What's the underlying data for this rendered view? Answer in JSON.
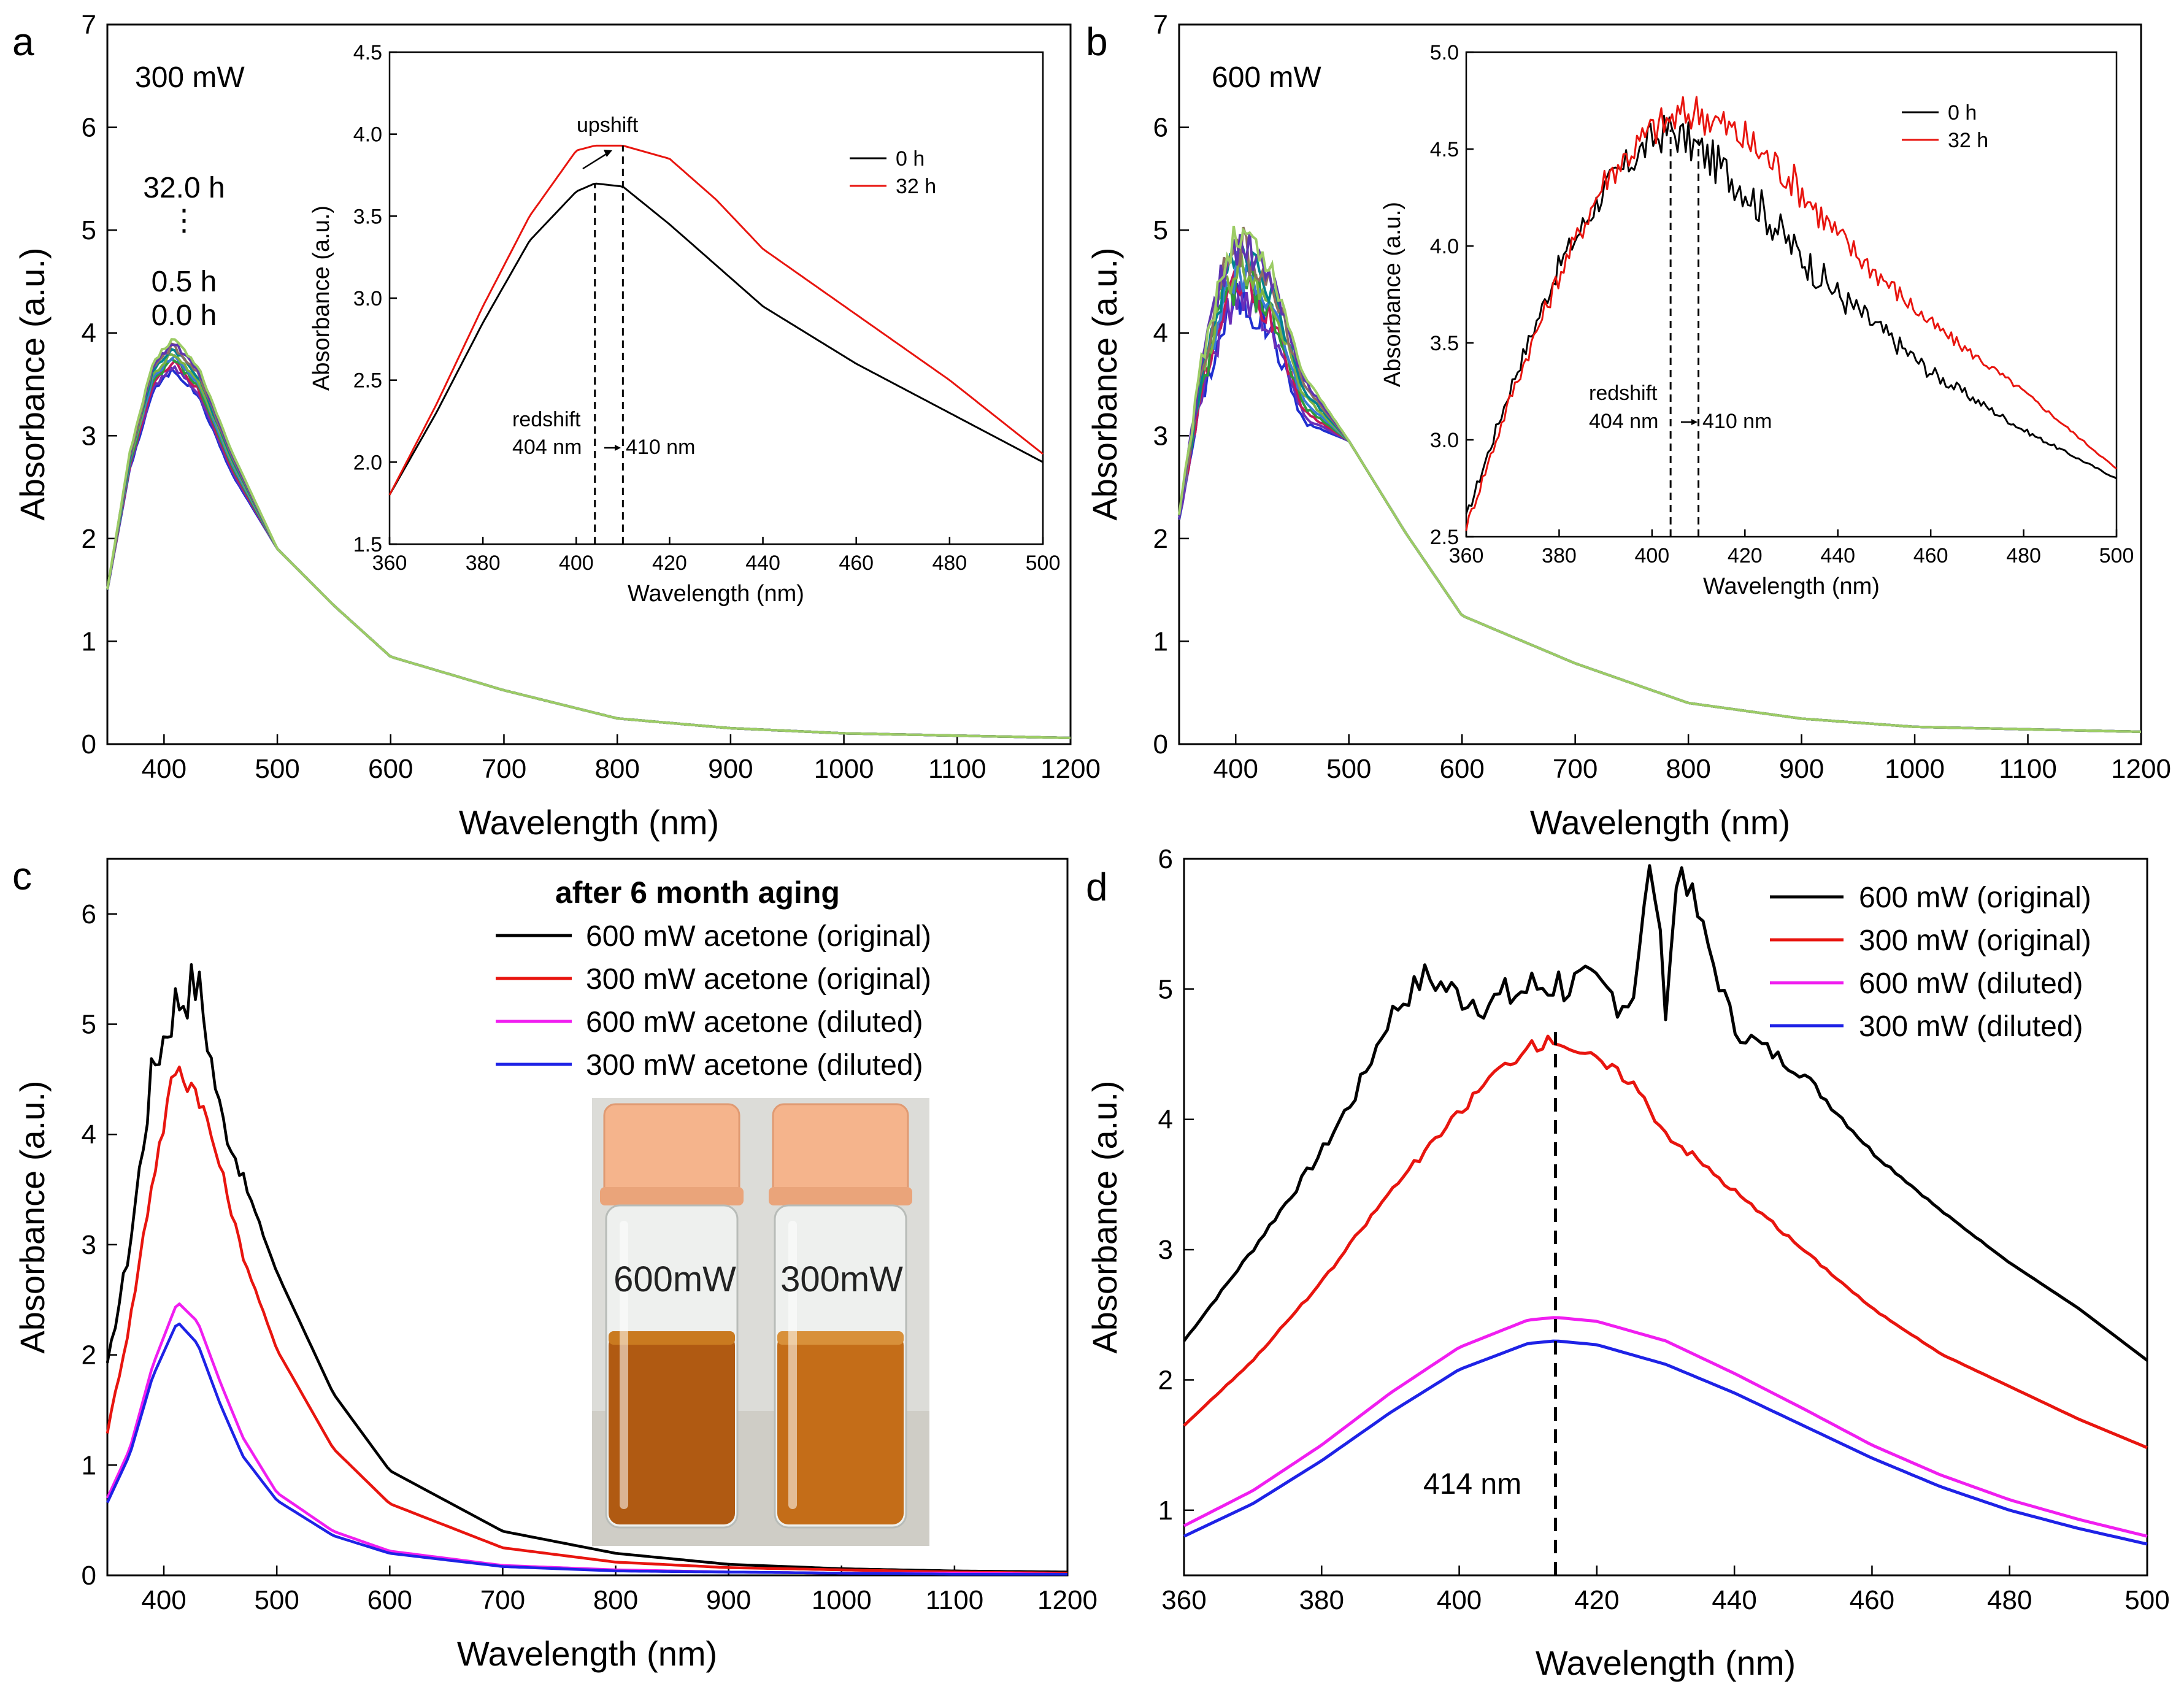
{
  "colors": {
    "black": "#000000",
    "red": "#e8150f",
    "magenta": "#f01ef0",
    "blue": "#1e22e6",
    "spectrum_family": [
      "#1f2fd0",
      "#6a2fb8",
      "#c2185b",
      "#2e9a3a",
      "#3a7bd5",
      "#7cb342",
      "#00838f",
      "#8d6e63",
      "#5e35b1",
      "#9ccc65"
    ]
  },
  "chart_data": [
    {
      "panel": "a",
      "type": "line",
      "label": "300 mW",
      "xlabel": "Wavelength (nm)",
      "ylabel": "Absorbance (a.u.)",
      "xlim": [
        350,
        1200
      ],
      "ylim": [
        0,
        7
      ],
      "xticks": [
        400,
        500,
        600,
        700,
        800,
        900,
        1000,
        1100,
        1200
      ],
      "yticks": [
        0,
        1,
        2,
        3,
        4,
        5,
        6,
        7
      ],
      "time_labels": [
        "32.0 h",
        "⋮",
        "0.5 h",
        "0.0 h"
      ],
      "curve_family": {
        "start_value": 1.5,
        "peak_nm": 408,
        "peak_min": 3.65,
        "peak_max": 3.95,
        "value_at_500": 1.9,
        "value_at_600": 0.85,
        "value_at_800": 0.25,
        "value_at_1200": 0.06,
        "count": 10
      },
      "inset": {
        "xlabel": "Wavelength (nm)",
        "ylabel": "Absorbance (a.u.)",
        "xlim": [
          360,
          500
        ],
        "ylim": [
          1.5,
          4.5
        ],
        "xticks": [
          360,
          380,
          400,
          420,
          440,
          460,
          480,
          500
        ],
        "yticks": [
          "1.5",
          "2.0",
          "2.5",
          "3.0",
          "3.5",
          "4.0",
          "4.5"
        ],
        "series": [
          {
            "name": "0 h",
            "color": "#000000",
            "x": [
              360,
              370,
              380,
              390,
              400,
              404,
              410,
              420,
              430,
              440,
              460,
              480,
              500
            ],
            "y": [
              1.8,
              2.3,
              2.85,
              3.35,
              3.65,
              3.7,
              3.68,
              3.45,
              3.2,
              2.95,
              2.6,
              2.3,
              2.0
            ]
          },
          {
            "name": "32 h",
            "color": "#e8150f",
            "x": [
              360,
              370,
              380,
              390,
              400,
              404,
              410,
              420,
              430,
              440,
              460,
              480,
              500
            ],
            "y": [
              1.8,
              2.35,
              2.95,
              3.5,
              3.9,
              3.93,
              3.93,
              3.85,
              3.6,
              3.3,
              2.9,
              2.5,
              2.05
            ]
          }
        ],
        "annotations": {
          "upshift": "upshift",
          "redshift": "redshift",
          "from_label": "404 nm",
          "to_label": "410 nm",
          "from_x": 404,
          "to_x": 410
        }
      }
    },
    {
      "panel": "b",
      "type": "line",
      "label": "600 mW",
      "xlabel": "Wavelength (nm)",
      "ylabel": "Absorbance (a.u.)",
      "xlim": [
        350,
        1200
      ],
      "ylim": [
        0,
        7
      ],
      "xticks": [
        400,
        500,
        600,
        700,
        800,
        900,
        1000,
        1100,
        1200
      ],
      "yticks": [
        0,
        1,
        2,
        3,
        4,
        5,
        6,
        7
      ],
      "curve_family": {
        "start_value": 2.2,
        "peak_nm": 404,
        "peak_min": 4.35,
        "peak_max": 5.0,
        "value_at_500": 2.95,
        "value_at_600": 1.25,
        "value_at_800": 0.4,
        "value_at_1200": 0.12,
        "count": 10
      },
      "inset": {
        "xlabel": "Wavelength (nm)",
        "ylabel": "Absorbance (a.u.)",
        "xlim": [
          360,
          500
        ],
        "ylim": [
          2.5,
          5.0
        ],
        "xticks": [
          360,
          380,
          400,
          420,
          440,
          460,
          480,
          500
        ],
        "yticks": [
          "2.5",
          "3.0",
          "3.5",
          "4.0",
          "4.5",
          "5.0"
        ],
        "series": [
          {
            "name": "0 h",
            "color": "#000000",
            "x": [
              360,
              370,
              380,
              390,
              400,
              404,
              410,
              420,
              430,
              440,
              460,
              480,
              500
            ],
            "y": [
              2.6,
              3.3,
              3.9,
              4.3,
              4.55,
              4.6,
              4.5,
              4.3,
              4.0,
              3.75,
              3.35,
              3.05,
              2.8
            ]
          },
          {
            "name": "32 h",
            "color": "#e8150f",
            "x": [
              360,
              370,
              380,
              390,
              400,
              404,
              410,
              420,
              430,
              440,
              460,
              480,
              500
            ],
            "y": [
              2.55,
              3.25,
              3.85,
              4.35,
              4.6,
              4.65,
              4.7,
              4.55,
              4.35,
              4.05,
              3.6,
              3.25,
              2.85
            ]
          }
        ],
        "annotations": {
          "redshift": "redshift",
          "from_label": "404 nm",
          "to_label": "410 nm",
          "from_x": 404,
          "to_x": 410
        }
      }
    },
    {
      "panel": "c",
      "type": "line",
      "xlabel": "Wavelength (nm)",
      "ylabel": "Absorbance (a.u.)",
      "xlim": [
        350,
        1200
      ],
      "ylim": [
        0,
        6.5
      ],
      "xticks": [
        400,
        500,
        600,
        700,
        800,
        900,
        1000,
        1100,
        1200
      ],
      "yticks": [
        0,
        1,
        2,
        3,
        4,
        5,
        6
      ],
      "legend_title": "after 6 month aging",
      "series": [
        {
          "name": "600 mW acetone (original)",
          "color": "#000000",
          "x": [
            350,
            370,
            390,
            410,
            430,
            450,
            470,
            500,
            550,
            600,
            700,
            800,
            900,
            1000,
            1100,
            1200
          ],
          "y": [
            1.9,
            3.0,
            4.6,
            5.2,
            5.4,
            4.2,
            3.6,
            2.75,
            1.65,
            0.95,
            0.4,
            0.2,
            0.1,
            0.06,
            0.04,
            0.03
          ]
        },
        {
          "name": "300 mW acetone (original)",
          "color": "#e8150f",
          "x": [
            350,
            370,
            390,
            410,
            430,
            450,
            470,
            500,
            550,
            600,
            700,
            800,
            900,
            1000,
            1100,
            1200
          ],
          "y": [
            1.3,
            2.3,
            3.6,
            4.6,
            4.4,
            3.7,
            2.9,
            2.05,
            1.15,
            0.65,
            0.25,
            0.12,
            0.07,
            0.05,
            0.03,
            0.02
          ]
        },
        {
          "name": "600 mW acetone (diluted)",
          "color": "#f01ef0",
          "x": [
            350,
            370,
            390,
            412,
            430,
            450,
            470,
            500,
            550,
            600,
            700,
            800,
            900,
            1000,
            1100,
            1200
          ],
          "y": [
            0.7,
            1.15,
            1.9,
            2.48,
            2.3,
            1.75,
            1.25,
            0.75,
            0.4,
            0.22,
            0.09,
            0.05,
            0.03,
            0.02,
            0.02,
            0.01
          ]
        },
        {
          "name": "300 mW acetone (diluted)",
          "color": "#1e22e6",
          "x": [
            350,
            370,
            390,
            412,
            430,
            450,
            470,
            500,
            550,
            600,
            700,
            800,
            900,
            1000,
            1100,
            1200
          ],
          "y": [
            0.66,
            1.1,
            1.8,
            2.3,
            2.1,
            1.55,
            1.08,
            0.68,
            0.36,
            0.2,
            0.08,
            0.04,
            0.03,
            0.02,
            0.01,
            0.01
          ]
        }
      ],
      "photo_labels": [
        "600mW",
        "300mW"
      ]
    },
    {
      "panel": "d",
      "type": "line",
      "xlabel": "Wavelength (nm)",
      "ylabel": "Absorbance (a.u.)",
      "xlim": [
        360,
        500
      ],
      "ylim": [
        0.5,
        6
      ],
      "xticks": [
        360,
        380,
        400,
        420,
        440,
        460,
        480,
        500
      ],
      "yticks": [
        1,
        2,
        3,
        4,
        5,
        6
      ],
      "marker_label": "414 nm",
      "marker_x": 414,
      "series": [
        {
          "name": "600 mW (original)",
          "color": "#000000",
          "x": [
            360,
            370,
            380,
            385,
            390,
            395,
            400,
            405,
            410,
            414,
            420,
            425,
            428,
            430,
            432,
            440,
            450,
            460,
            470,
            480,
            490,
            500
          ],
          "y": [
            2.3,
            3.0,
            3.75,
            4.2,
            4.8,
            5.1,
            4.95,
            4.9,
            5.0,
            5.05,
            5.0,
            4.9,
            6.0,
            4.9,
            6.0,
            4.7,
            4.35,
            3.75,
            3.3,
            2.9,
            2.55,
            2.15
          ]
        },
        {
          "name": "300 mW (original)",
          "color": "#e8150f",
          "x": [
            360,
            370,
            380,
            390,
            400,
            405,
            410,
            414,
            420,
            425,
            430,
            440,
            450,
            460,
            470,
            480,
            490,
            500
          ],
          "y": [
            1.65,
            2.15,
            2.75,
            3.45,
            4.05,
            4.35,
            4.55,
            4.62,
            4.45,
            4.3,
            3.9,
            3.45,
            3.0,
            2.55,
            2.2,
            1.95,
            1.7,
            1.48
          ]
        },
        {
          "name": "600 mW (diluted)",
          "color": "#f01ef0",
          "x": [
            360,
            370,
            380,
            390,
            400,
            410,
            414,
            420,
            430,
            440,
            450,
            460,
            470,
            480,
            490,
            500
          ],
          "y": [
            0.88,
            1.15,
            1.5,
            1.9,
            2.25,
            2.46,
            2.48,
            2.45,
            2.3,
            2.05,
            1.78,
            1.5,
            1.27,
            1.08,
            0.93,
            0.8
          ]
        },
        {
          "name": "300 mW (diluted)",
          "color": "#1e22e6",
          "x": [
            360,
            370,
            380,
            390,
            400,
            410,
            414,
            420,
            430,
            440,
            450,
            460,
            470,
            480,
            490,
            500
          ],
          "y": [
            0.8,
            1.05,
            1.38,
            1.75,
            2.08,
            2.28,
            2.3,
            2.27,
            2.12,
            1.9,
            1.65,
            1.4,
            1.18,
            1.0,
            0.86,
            0.74
          ]
        }
      ]
    }
  ]
}
